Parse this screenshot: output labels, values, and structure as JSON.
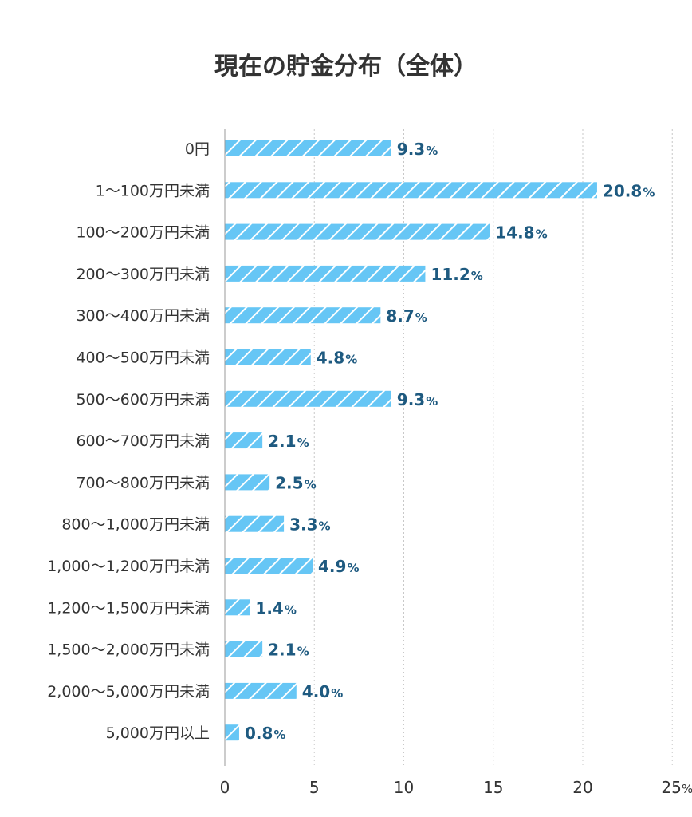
{
  "chart_data": {
    "type": "bar",
    "orientation": "horizontal",
    "title": "現在の貯金分布（全体）",
    "categories": [
      "0円",
      "1〜100万円未満",
      "100〜200万円未満",
      "200〜300万円未満",
      "300〜400万円未満",
      "400〜500万円未満",
      "500〜600万円未満",
      "600〜700万円未満",
      "700〜800万円未満",
      "800〜1,000万円未満",
      "1,000〜1,200万円未満",
      "1,200〜1,500万円未満",
      "1,500〜2,000万円未満",
      "2,000〜5,000万円未満",
      "5,000万円以上"
    ],
    "values": [
      9.3,
      20.8,
      14.8,
      11.2,
      8.7,
      4.8,
      9.3,
      2.1,
      2.5,
      3.3,
      4.9,
      1.4,
      2.1,
      4.0,
      0.8
    ],
    "value_labels": [
      "9.3",
      "20.8",
      "14.8",
      "11.2",
      "8.7",
      "4.8",
      "9.3",
      "2.1",
      "2.5",
      "3.3",
      "4.9",
      "1.4",
      "2.1",
      "4.0",
      "0.8"
    ],
    "value_unit": "%",
    "xlim": [
      0,
      25
    ],
    "xticks": [
      "0",
      "5",
      "10",
      "15",
      "20",
      "25"
    ],
    "xtick_unit": "%",
    "grid": "vertical dotted",
    "bar_pattern": "diagonal stripes",
    "colors": {
      "bar": "#66c6f5",
      "stripe": "#ffffff",
      "value_text": "#1e5a80",
      "text": "#333333",
      "grid": "#c8c8c8",
      "axis": "#999999"
    }
  }
}
